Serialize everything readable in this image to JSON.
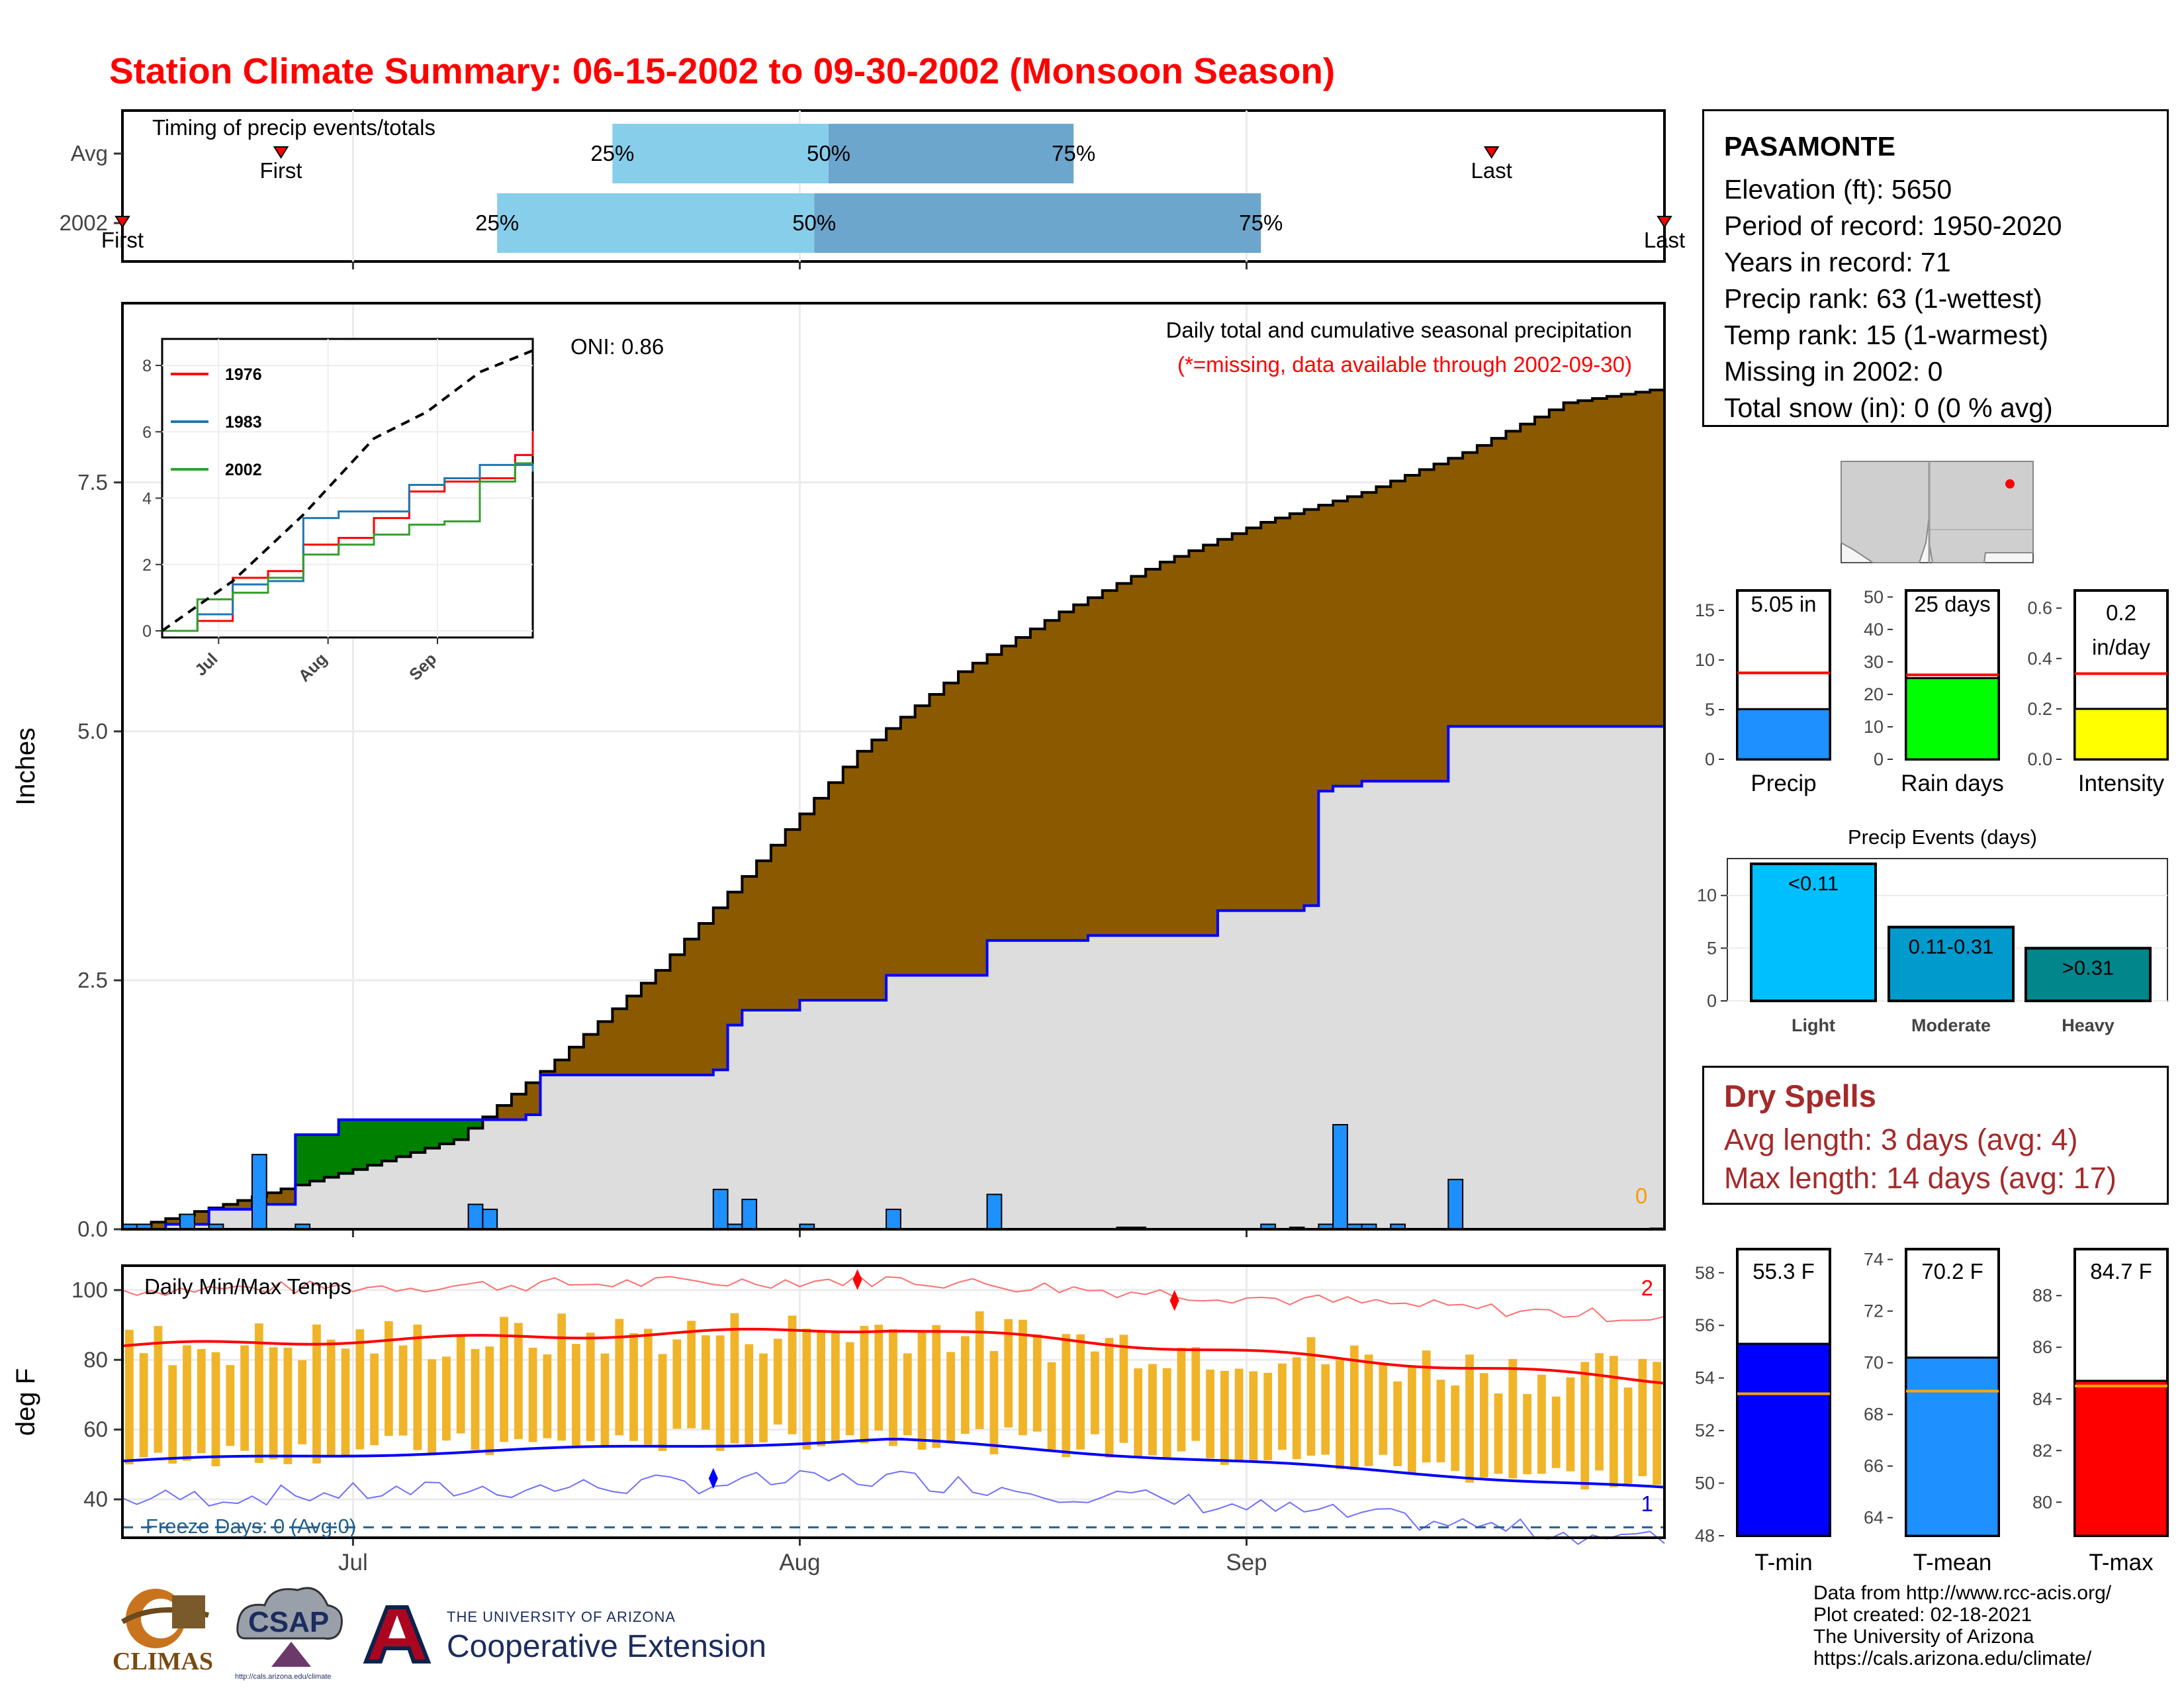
{
  "title": "Station Climate Summary: 06-15-2002 to 09-30-2002 (Monsoon Season)",
  "timing": {
    "label": "Timing of precip events/totals",
    "rows": [
      {
        "name": "Avg",
        "first_date": "06-26",
        "last_date": "09-18",
        "p25_date": "07-19",
        "p50_date": "08-03",
        "p75_date": "08-20",
        "first_label": "First",
        "last_label": "Last"
      },
      {
        "name": "2002",
        "first_date": "06-15",
        "last_date": "09-30",
        "p25_date": "07-11",
        "p50_date": "08-02",
        "p75_date": "09-02",
        "first_label": "First",
        "last_label": "Last"
      }
    ],
    "pct_labels": [
      "25%",
      "50%",
      "75%"
    ]
  },
  "main_panel": {
    "ylabel": "Inches",
    "yticks": [
      "0.0",
      "2.5",
      "5.0",
      "7.5"
    ],
    "annotation_title": "Daily total and cumulative seasonal precipitation",
    "annotation_missing": "(*=missing, data available through 2002-09-30)",
    "oni": "ONI: 0.86",
    "missing_count": "0",
    "colors": {
      "above": "#008000",
      "below": "#8b5a00",
      "obs_fill": "#dddddd",
      "obs_line": "#0000ff",
      "bar": "#1e90ff",
      "avg_line": "#000000"
    }
  },
  "inset": {
    "yticks": [
      "0",
      "2",
      "4",
      "6",
      "8"
    ],
    "xticks": [
      "Jul",
      "Aug",
      "Sep"
    ],
    "legend": [
      {
        "name": "1976",
        "color": "#ff0000"
      },
      {
        "name": "1983",
        "color": "#1f78b4"
      },
      {
        "name": "2002",
        "color": "#33a02c"
      }
    ]
  },
  "temp_panel": {
    "label": "Daily Min/Max Temps",
    "ylabel": "deg F",
    "yticks": [
      "40",
      "60",
      "80",
      "100"
    ],
    "freeze_label": "Freeze Days: 0 (Avg:0)",
    "record_high_count": "2",
    "record_low_count": "1"
  },
  "xaxis": {
    "ticks": [
      "Jul",
      "Aug",
      "Sep"
    ]
  },
  "station": {
    "name": "PASAMONTE",
    "lines": [
      "Elevation (ft): 5650",
      "Period of record: 1950-2020",
      "Years in record: 71",
      "Precip rank: 63 (1-wettest)",
      "Temp rank: 15 (1-warmest)",
      "Missing in 2002: 0",
      "Total snow (in): 0 (0 % avg)"
    ]
  },
  "mini_bars": [
    {
      "label": "Precip",
      "value_text": "5.05 in",
      "value": 5.05,
      "avg": 8.7,
      "ymax": 17,
      "ticks": [
        "0",
        "5",
        "10",
        "15"
      ],
      "tickvals": [
        0,
        5,
        10,
        15
      ],
      "color": "#1e90ff"
    },
    {
      "label": "Rain days",
      "value_text": "25 days",
      "value": 25,
      "avg": 26,
      "ymax": 52,
      "ticks": [
        "0",
        "10",
        "20",
        "30",
        "40",
        "50"
      ],
      "tickvals": [
        0,
        10,
        20,
        30,
        40,
        50
      ],
      "color": "#00ff00"
    },
    {
      "label": "Intensity",
      "value_text": "0.2\nin/day",
      "value": 0.2,
      "avg": 0.34,
      "ymax": 0.67,
      "ticks": [
        "0.0",
        "0.2",
        "0.4",
        "0.6"
      ],
      "tickvals": [
        0,
        0.2,
        0.4,
        0.6
      ],
      "color": "#ffff00"
    }
  ],
  "precip_events": {
    "title": "Precip Events (days)",
    "categories": [
      "Light",
      "Moderate",
      "Heavy"
    ],
    "labels": [
      "<0.11",
      "0.11-0.31",
      ">0.31"
    ],
    "values": [
      13,
      7,
      5
    ],
    "ticks": [
      "0",
      "5",
      "10"
    ],
    "colors": [
      "#00bfff",
      "#009acd",
      "#00868b"
    ]
  },
  "dry_spells": {
    "title": "Dry Spells",
    "avg": "Avg length: 3 days (avg: 4)",
    "max": "Max length: 14 days (avg: 17)"
  },
  "temp_bars": [
    {
      "label": "T-min",
      "value_text": "55.3 F",
      "value": 55.3,
      "avg": 53.4,
      "ymin": 48,
      "ymax": 58.9,
      "ticks": [
        "48",
        "50",
        "52",
        "54",
        "56",
        "58"
      ],
      "tickvals": [
        48,
        50,
        52,
        54,
        56,
        58
      ],
      "color": "#0000ff"
    },
    {
      "label": "T-mean",
      "value_text": "70.2 F",
      "value": 70.2,
      "avg": 68.9,
      "ymin": 63.3,
      "ymax": 74.4,
      "ticks": [
        "64",
        "66",
        "68",
        "70",
        "72",
        "74"
      ],
      "tickvals": [
        64,
        66,
        68,
        70,
        72,
        74
      ],
      "color": "#1e90ff"
    },
    {
      "label": "T-max",
      "value_text": "84.7 F",
      "value": 84.7,
      "avg": 84.5,
      "ymin": 78.7,
      "ymax": 89.8,
      "ticks": [
        "80",
        "82",
        "84",
        "86",
        "88"
      ],
      "tickvals": [
        80,
        82,
        84,
        86,
        88
      ],
      "color": "#ff0000"
    }
  ],
  "credits": [
    "Data from http://www.rcc-acis.org/",
    "Plot created: 02-18-2021",
    "The University of Arizona",
    "https://cals.arizona.edu/climate/"
  ],
  "logos": {
    "climas": "CLIMAS",
    "csap": "CSAP",
    "csap_url": "http://cals.arizona.edu/climate",
    "ua_small": "THE UNIVERSITY OF ARIZONA",
    "ua_big": "Cooperative Extension"
  },
  "chart_data": [
    {
      "type": "area",
      "title": "Daily total and cumulative seasonal precipitation",
      "ylabel": "Inches",
      "ylim": [
        0,
        9.3
      ],
      "x_dates_start": "2002-06-15",
      "x_dates_end": "2002-09-30",
      "cumulative_avg_knots": [
        [
          "06-15",
          0
        ],
        [
          "06-22",
          0.25
        ],
        [
          "07-01",
          0.6
        ],
        [
          "07-08",
          0.9
        ],
        [
          "07-15",
          1.7
        ],
        [
          "07-22",
          2.6
        ],
        [
          "07-29",
          3.7
        ],
        [
          "08-05",
          4.8
        ],
        [
          "08-12",
          5.6
        ],
        [
          "08-19",
          6.2
        ],
        [
          "08-26",
          6.7
        ],
        [
          "09-02",
          7.1
        ],
        [
          "09-09",
          7.4
        ],
        [
          "09-16",
          7.8
        ],
        [
          "09-23",
          8.3
        ],
        [
          "09-30",
          8.45
        ]
      ],
      "cumulative_2002_knots": [
        [
          "06-15",
          0
        ],
        [
          "06-18",
          0.05
        ],
        [
          "06-21",
          0.2
        ],
        [
          "06-24",
          0.25
        ],
        [
          "06-27",
          0.95
        ],
        [
          "06-30",
          1.1
        ],
        [
          "07-13",
          1.15
        ],
        [
          "07-14",
          1.55
        ],
        [
          "07-26",
          1.6
        ],
        [
          "07-27",
          2.05
        ],
        [
          "07-28",
          2.2
        ],
        [
          "08-01",
          2.3
        ],
        [
          "08-07",
          2.55
        ],
        [
          "08-14",
          2.9
        ],
        [
          "08-21",
          2.95
        ],
        [
          "08-30",
          3.2
        ],
        [
          "09-05",
          3.25
        ],
        [
          "09-06",
          4.4
        ],
        [
          "09-07",
          4.45
        ],
        [
          "09-09",
          4.5
        ],
        [
          "09-15",
          5.05
        ],
        [
          "09-30",
          5.05
        ]
      ],
      "daily_precip": [
        [
          "06-15",
          0.05
        ],
        [
          "06-16",
          0.05
        ],
        [
          "06-19",
          0.15
        ],
        [
          "06-21",
          0.05
        ],
        [
          "06-24",
          0.75
        ],
        [
          "06-27",
          0.05
        ],
        [
          "07-09",
          0.25
        ],
        [
          "07-10",
          0.2
        ],
        [
          "07-26",
          0.4
        ],
        [
          "07-27",
          0.05
        ],
        [
          "07-28",
          0.3
        ],
        [
          "08-01",
          0.05
        ],
        [
          "08-07",
          0.2
        ],
        [
          "08-14",
          0.35
        ],
        [
          "08-24",
          0.02
        ],
        [
          "08-23",
          0.02
        ],
        [
          "09-02",
          0.05
        ],
        [
          "09-04",
          0.02
        ],
        [
          "09-06",
          0.05
        ],
        [
          "09-07",
          1.05
        ],
        [
          "09-08",
          0.05
        ],
        [
          "09-09",
          0.05
        ],
        [
          "09-11",
          0.05
        ],
        [
          "09-15",
          0.5
        ],
        [
          "09-29",
          0.01
        ]
      ]
    },
    {
      "type": "line",
      "title": "",
      "series": [
        {
          "name": "1976",
          "color": "#ff0000",
          "values": [
            [
              0,
              0
            ],
            [
              10,
              0.3
            ],
            [
              20,
              1.6
            ],
            [
              30,
              1.8
            ],
            [
              40,
              2.6
            ],
            [
              50,
              2.8
            ],
            [
              60,
              3.4
            ],
            [
              70,
              4.2
            ],
            [
              80,
              4.5
            ],
            [
              90,
              4.6
            ],
            [
              100,
              5.3
            ],
            [
              105,
              6.0
            ]
          ]
        },
        {
          "name": "1983",
          "color": "#1f78b4",
          "values": [
            [
              0,
              0
            ],
            [
              10,
              0.5
            ],
            [
              20,
              1.4
            ],
            [
              30,
              1.5
            ],
            [
              40,
              3.4
            ],
            [
              50,
              3.6
            ],
            [
              60,
              3.6
            ],
            [
              70,
              4.4
            ],
            [
              80,
              4.6
            ],
            [
              90,
              5.0
            ],
            [
              100,
              5.0
            ],
            [
              105,
              4.8
            ]
          ]
        },
        {
          "name": "2002",
          "color": "#33a02c",
          "values": [
            [
              0,
              0
            ],
            [
              10,
              0.95
            ],
            [
              20,
              1.15
            ],
            [
              30,
              1.6
            ],
            [
              40,
              2.3
            ],
            [
              50,
              2.6
            ],
            [
              60,
              2.9
            ],
            [
              70,
              3.2
            ],
            [
              80,
              3.3
            ],
            [
              90,
              4.5
            ],
            [
              100,
              5.05
            ],
            [
              105,
              5.05
            ]
          ]
        }
      ],
      "avg_line": [
        [
          0,
          0
        ],
        [
          20,
          1.5
        ],
        [
          40,
          3.5
        ],
        [
          60,
          5.8
        ],
        [
          75,
          6.6
        ],
        [
          90,
          7.8
        ],
        [
          105,
          8.45
        ]
      ],
      "ylim": [
        0,
        8.6
      ]
    },
    {
      "type": "bar",
      "title": "Daily Min/Max Temps",
      "ylabel": "deg F",
      "ylim": [
        29,
        107
      ],
      "avg_max_range": [
        84,
        89,
        74
      ],
      "avg_min_range": [
        51,
        57,
        43
      ],
      "record_high_range": [
        100,
        103,
        92
      ],
      "record_low_range": [
        40,
        46,
        28
      ],
      "freeze_line": 32
    },
    {
      "type": "bar",
      "title": "Precip Events (days)",
      "categories": [
        "Light",
        "Moderate",
        "Heavy"
      ],
      "values": [
        13,
        7,
        5
      ]
    }
  ]
}
